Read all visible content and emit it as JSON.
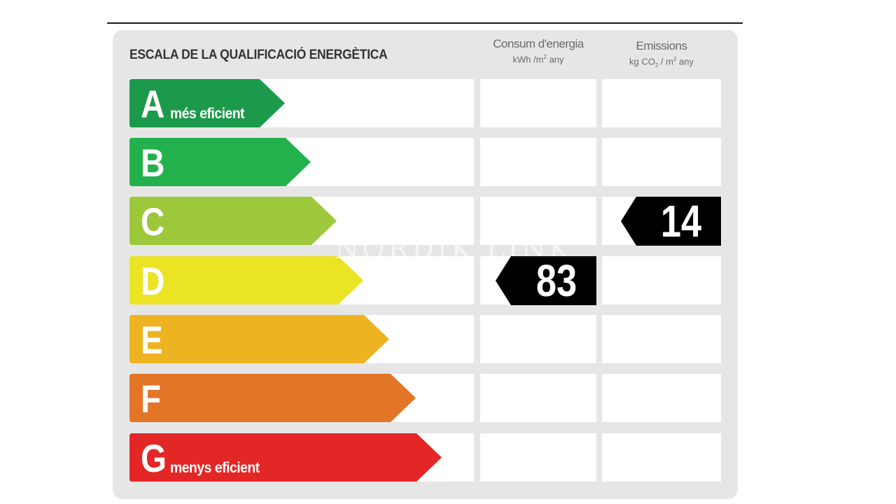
{
  "title": "ESCALA DE LA QUALIFICACIÓ ENERGÈTICA",
  "columns": {
    "consum": {
      "label": "Consum d'energia",
      "unit_pre": "kWh /m",
      "unit_sup": "2",
      "unit_post": " any"
    },
    "emissions": {
      "label": "Emissions",
      "unit_pre": "kg CO",
      "unit_sub": "2",
      "unit_mid": " / m",
      "unit_sup": "2",
      "unit_post": " any"
    }
  },
  "ratings": [
    {
      "letter": "A",
      "label": "més eficient",
      "color": "#1b9a4b"
    },
    {
      "letter": "B",
      "label": "",
      "color": "#23b14d"
    },
    {
      "letter": "C",
      "label": "",
      "color": "#9dc83b"
    },
    {
      "letter": "D",
      "label": "",
      "color": "#ebe424"
    },
    {
      "letter": "E",
      "label": "",
      "color": "#eeb320"
    },
    {
      "letter": "F",
      "label": "",
      "color": "#e37527"
    },
    {
      "letter": "G",
      "label": "menys eficient",
      "color": "#e32726"
    }
  ],
  "consumption": {
    "value": "83",
    "rating": "D"
  },
  "emissions": {
    "value": "14",
    "rating": "C"
  },
  "watermark": "NORDIK LINK"
}
